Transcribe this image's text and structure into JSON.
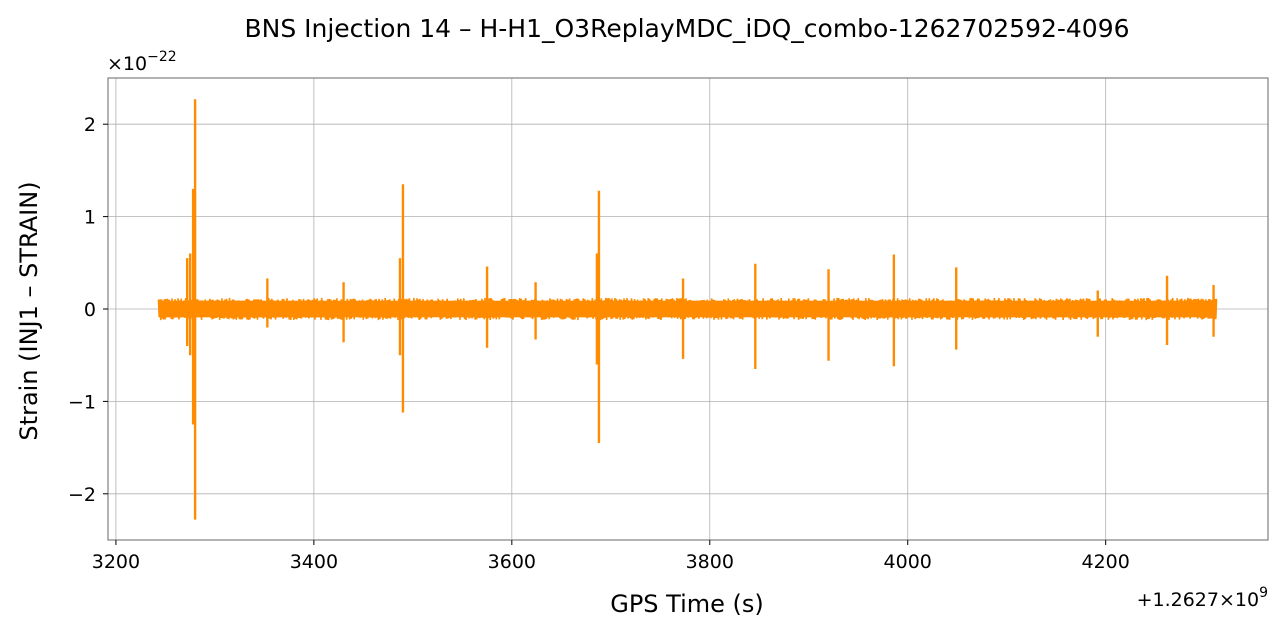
{
  "chart_data": {
    "type": "line",
    "title": "BNS Injection 14 – H-H1_O3ReplayMDC_iDQ_combo-1262702592-4096",
    "xlabel": "GPS Time (s)",
    "ylabel": "Strain (INJ1 – STRAIN)",
    "y_scale_label": "×10⁻²²",
    "x_offset_label": "+1.2627×10⁹",
    "xlim": [
      3192,
      4364
    ],
    "ylim": [
      -2.5,
      2.5
    ],
    "xticks": [
      3200,
      3400,
      3600,
      3800,
      4000,
      4200
    ],
    "xtick_labels": [
      "3200",
      "3400",
      "3600",
      "3800",
      "4000",
      "4200"
    ],
    "yticks": [
      -2,
      -1,
      0,
      1,
      2
    ],
    "ytick_labels": [
      "−2",
      "−1",
      "0",
      "1",
      "2"
    ],
    "grid": true,
    "series_color": "#ff8c00",
    "x_range": [
      3243,
      4312
    ],
    "noise_level": 0.12,
    "spikes": [
      {
        "x": 3272,
        "high": 0.55,
        "low": -0.4
      },
      {
        "x": 3275,
        "high": 0.6,
        "low": -0.5
      },
      {
        "x": 3278,
        "high": 1.3,
        "low": -1.25
      },
      {
        "x": 3280,
        "high": 2.27,
        "low": -2.28
      },
      {
        "x": 3353,
        "high": 0.33,
        "low": -0.2
      },
      {
        "x": 3430,
        "high": 0.29,
        "low": -0.36
      },
      {
        "x": 3487,
        "high": 0.55,
        "low": -0.5
      },
      {
        "x": 3490,
        "high": 1.35,
        "low": -1.12
      },
      {
        "x": 3575,
        "high": 0.46,
        "low": -0.42
      },
      {
        "x": 3624,
        "high": 0.29,
        "low": -0.33
      },
      {
        "x": 3686,
        "high": 0.6,
        "low": -0.6
      },
      {
        "x": 3688,
        "high": 1.28,
        "low": -1.45
      },
      {
        "x": 3773,
        "high": 0.33,
        "low": -0.54
      },
      {
        "x": 3846,
        "high": 0.49,
        "low": -0.65
      },
      {
        "x": 3920,
        "high": 0.43,
        "low": -0.56
      },
      {
        "x": 3986,
        "high": 0.59,
        "low": -0.62
      },
      {
        "x": 4049,
        "high": 0.45,
        "low": -0.44
      },
      {
        "x": 4192,
        "high": 0.2,
        "low": -0.3
      },
      {
        "x": 4262,
        "high": 0.36,
        "low": -0.39
      },
      {
        "x": 4309,
        "high": 0.26,
        "low": -0.3
      }
    ]
  }
}
